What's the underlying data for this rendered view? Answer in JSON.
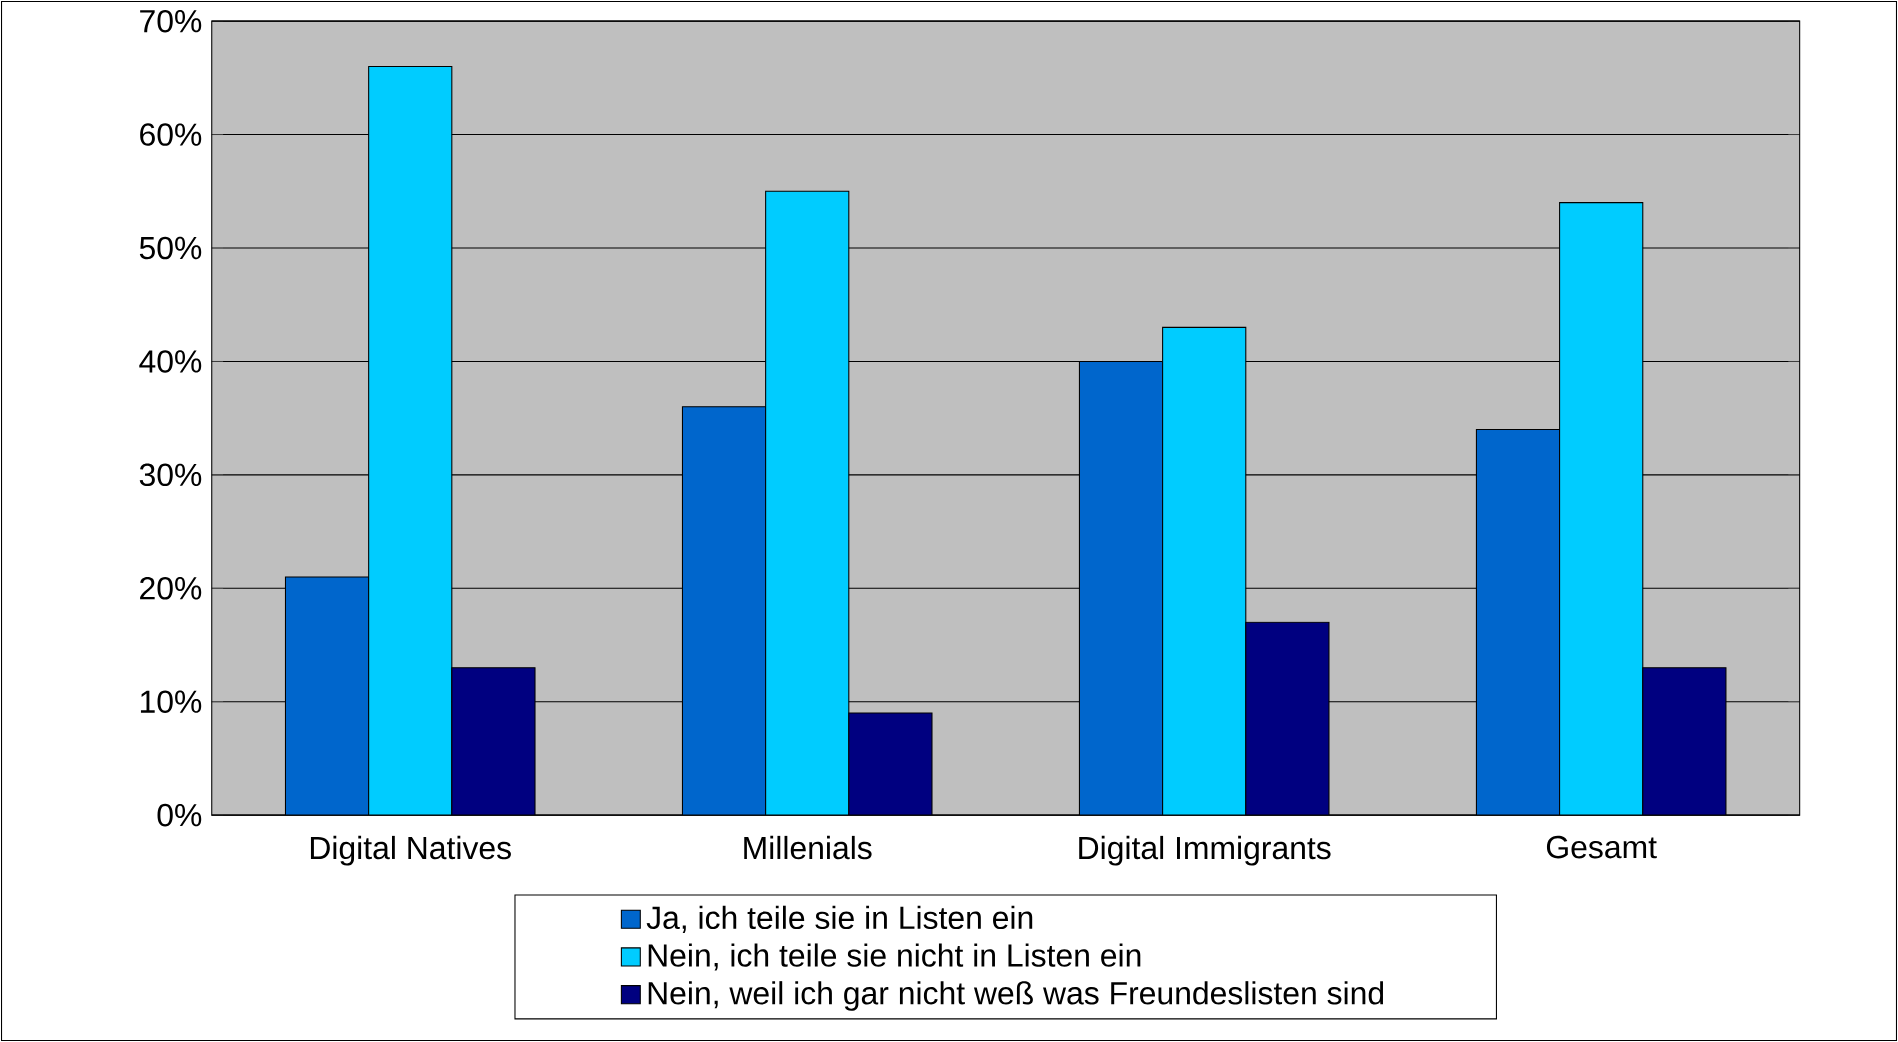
{
  "chart_data": {
    "type": "bar",
    "categories": [
      "Digital Natives",
      "Millenials",
      "Digital Immigrants",
      "Gesamt"
    ],
    "series": [
      {
        "name": "Ja, ich teile sie in Listen ein",
        "color": "#0066cc",
        "values": [
          21,
          36,
          40,
          34
        ]
      },
      {
        "name": "Nein, ich teile sie nicht in Listen ein",
        "color": "#00ccff",
        "values": [
          66,
          55,
          43,
          54
        ]
      },
      {
        "name": "Nein, weil ich gar nicht weß was Freundeslisten sind",
        "color": "#000080",
        "values": [
          13,
          9,
          17,
          13
        ]
      }
    ],
    "ylim": [
      0,
      70
    ],
    "yticks": [
      {
        "value": 0,
        "label": "0%"
      },
      {
        "value": 10,
        "label": "10%"
      },
      {
        "value": 20,
        "label": "20%"
      },
      {
        "value": 30,
        "label": "30%"
      },
      {
        "value": 40,
        "label": "40%"
      },
      {
        "value": 50,
        "label": "50%"
      },
      {
        "value": 60,
        "label": "60%"
      },
      {
        "value": 70,
        "label": "70%"
      }
    ],
    "grid": "y",
    "legend": "bottom"
  }
}
